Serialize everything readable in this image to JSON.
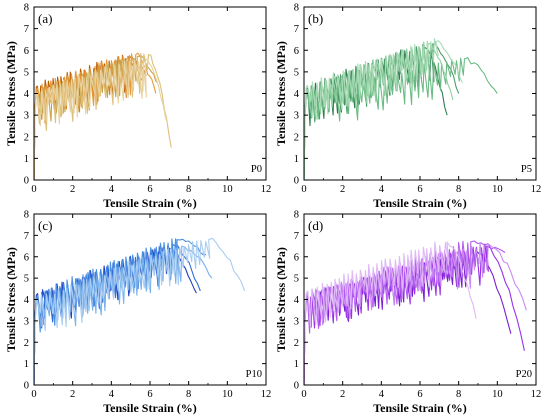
{
  "chart_data": [
    {
      "type": "line",
      "panel_label": "(a)",
      "tag": "P0",
      "xlabel": "Tensile Strain (%)",
      "ylabel": "Tensile Stress (MPa)",
      "xlim": [
        0,
        12
      ],
      "ylim": [
        0,
        8
      ],
      "xticks": [
        0,
        2,
        4,
        6,
        8,
        10,
        12
      ],
      "yticks": [
        0,
        1,
        2,
        3,
        4,
        5,
        6,
        7,
        8
      ],
      "grid": false,
      "colors": [
        "#b85c00",
        "#d9821c",
        "#e89a3a",
        "#c9a24a",
        "#dcc07a",
        "#e9d2a0"
      ],
      "series": [
        {
          "end": 5.8,
          "peak": 5.7,
          "base": 4.3,
          "drop": 4.8
        },
        {
          "end": 5.6,
          "peak": 5.5,
          "base": 4.1,
          "drop": 4.6
        },
        {
          "end": 6.3,
          "peak": 5.8,
          "base": 4.2,
          "drop": 4.0
        },
        {
          "end": 6.4,
          "peak": 5.7,
          "base": 4.0,
          "drop": 4.5
        },
        {
          "end": 7.1,
          "peak": 5.8,
          "base": 3.9,
          "drop": 1.5
        },
        {
          "end": 6.9,
          "peak": 5.6,
          "base": 4.0,
          "drop": 2.6
        }
      ]
    },
    {
      "type": "line",
      "panel_label": "(b)",
      "tag": "P5",
      "xlabel": "Tensile Strain (%)",
      "ylabel": "Tensile Stress (MPa)",
      "xlim": [
        0,
        12
      ],
      "ylim": [
        0,
        8
      ],
      "xticks": [
        0,
        2,
        4,
        6,
        8,
        10,
        12
      ],
      "yticks": [
        0,
        1,
        2,
        3,
        4,
        5,
        6,
        7,
        8
      ],
      "grid": false,
      "colors": [
        "#2e7d4f",
        "#4d9d6a",
        "#6cbb84",
        "#8fcfa0",
        "#a9dcb6"
      ],
      "series": [
        {
          "end": 7.4,
          "peak": 6.2,
          "base": 4.2,
          "drop": 3.0
        },
        {
          "end": 8.0,
          "peak": 6.3,
          "base": 4.0,
          "drop": 4.0
        },
        {
          "end": 10.0,
          "peak": 5.6,
          "base": 3.9,
          "drop": 4.0
        },
        {
          "end": 7.7,
          "peak": 6.3,
          "base": 4.1,
          "drop": 3.7
        },
        {
          "end": 8.2,
          "peak": 6.4,
          "base": 4.3,
          "drop": 4.5
        }
      ]
    },
    {
      "type": "line",
      "panel_label": "(c)",
      "tag": "P10",
      "xlabel": "Tensile Strain (%)",
      "ylabel": "Tensile Stress (MPa)",
      "xlim": [
        0,
        12
      ],
      "ylim": [
        0,
        8
      ],
      "xticks": [
        0,
        2,
        4,
        6,
        8,
        10,
        12
      ],
      "yticks": [
        0,
        1,
        2,
        3,
        4,
        5,
        6,
        7,
        8
      ],
      "grid": false,
      "colors": [
        "#1f3fbf",
        "#2f6fd9",
        "#4a90e2",
        "#79b2ec",
        "#a9cdf2"
      ],
      "series": [
        {
          "end": 8.4,
          "peak": 6.4,
          "base": 4.2,
          "drop": 4.3
        },
        {
          "end": 8.6,
          "peak": 6.6,
          "base": 4.0,
          "drop": 4.4
        },
        {
          "end": 8.9,
          "peak": 6.8,
          "base": 4.1,
          "drop": 6.1
        },
        {
          "end": 9.2,
          "peak": 6.5,
          "base": 3.8,
          "drop": 5.0
        },
        {
          "end": 10.9,
          "peak": 6.8,
          "base": 3.9,
          "drop": 4.4
        }
      ]
    },
    {
      "type": "line",
      "panel_label": "(d)",
      "tag": "P20",
      "xlabel": "Tensile Strain (%)",
      "ylabel": "Tensile Stress (MPa)",
      "xlim": [
        0,
        12
      ],
      "ylim": [
        0,
        8
      ],
      "xticks": [
        0,
        2,
        4,
        6,
        8,
        10,
        12
      ],
      "yticks": [
        0,
        1,
        2,
        3,
        4,
        5,
        6,
        7,
        8
      ],
      "grid": false,
      "colors": [
        "#7a1fd0",
        "#9b30e8",
        "#b45cf0",
        "#c98af2",
        "#e0b8f7"
      ],
      "series": [
        {
          "end": 10.7,
          "peak": 6.3,
          "base": 4.1,
          "drop": 2.4
        },
        {
          "end": 11.4,
          "peak": 6.5,
          "base": 4.0,
          "drop": 1.6
        },
        {
          "end": 10.4,
          "peak": 6.7,
          "base": 3.9,
          "drop": 6.2
        },
        {
          "end": 11.5,
          "peak": 6.6,
          "base": 4.2,
          "drop": 3.5
        },
        {
          "end": 8.9,
          "peak": 6.7,
          "base": 4.3,
          "drop": 3.1
        }
      ]
    }
  ]
}
